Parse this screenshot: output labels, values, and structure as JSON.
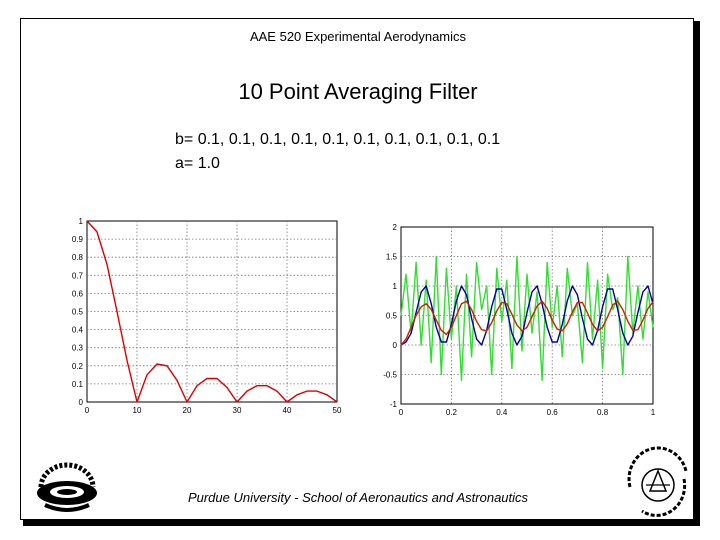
{
  "header": {
    "course": "AAE 520 Experimental Aerodynamics",
    "title": "10 Point Averaging Filter"
  },
  "coefficients": {
    "b_line": "b= 0.1,  0.1,  0.1,  0.1,  0.1,  0.1,  0.1,  0.1,  0.1,  0.1",
    "a_line": "a= 1.0"
  },
  "footer": {
    "text": "Purdue University - School of Aeronautics and Astronautics"
  },
  "logos": {
    "left": "Purdue University seal",
    "right": "Purdue University seal"
  },
  "colors": {
    "response": "#dd0000",
    "raw": "#33dd33",
    "input": "#0000aa",
    "filtered": "#cc2200"
  },
  "chart_data": [
    {
      "type": "line",
      "x_ticks": [
        "0",
        "10",
        "20",
        "30",
        "40",
        "50"
      ],
      "y_ticks": [
        "0",
        "0.1",
        "0.2",
        "0.3",
        "0.4",
        "0.5",
        "0.6",
        "0.7",
        "0.8",
        "0.9",
        "1"
      ],
      "xlim": [
        0,
        50
      ],
      "ylim": [
        0,
        1
      ],
      "grid": true,
      "series": [
        {
          "x": [
            0,
            2,
            4,
            6,
            8,
            10,
            12,
            14,
            16,
            18,
            20,
            22,
            24,
            26,
            28,
            30,
            32,
            34,
            36,
            38,
            40,
            42,
            44,
            46,
            48,
            50
          ],
          "y": [
            1.0,
            0.94,
            0.76,
            0.5,
            0.23,
            0.0,
            0.15,
            0.21,
            0.2,
            0.12,
            0.0,
            0.09,
            0.13,
            0.13,
            0.08,
            0.0,
            0.06,
            0.09,
            0.09,
            0.06,
            0.0,
            0.04,
            0.06,
            0.06,
            0.04,
            0.0
          ]
        }
      ]
    },
    {
      "type": "line",
      "x_ticks": [
        "0",
        "0.2",
        "0.4",
        "0.6",
        "0.8",
        "1"
      ],
      "y_ticks": [
        "-1",
        "-0.5",
        "0",
        "0.5",
        "1",
        "1.5",
        "2"
      ],
      "xlim": [
        0,
        1
      ],
      "ylim": [
        -1,
        2
      ],
      "grid": true,
      "series": [
        {
          "x": [
            0,
            0.02,
            0.04,
            0.06,
            0.08,
            0.1,
            0.12,
            0.14,
            0.16,
            0.18,
            0.2,
            0.22,
            0.24,
            0.26,
            0.28,
            0.3,
            0.32,
            0.34,
            0.36,
            0.38,
            0.4,
            0.42,
            0.44,
            0.46,
            0.48,
            0.5,
            0.52,
            0.54,
            0.56,
            0.58,
            0.6,
            0.62,
            0.64,
            0.66,
            0.68,
            0.7,
            0.72,
            0.74,
            0.76,
            0.78,
            0.8,
            0.82,
            0.84,
            0.86,
            0.88,
            0.9,
            0.92,
            0.94,
            0.96,
            0.98,
            1.0
          ],
          "y": [
            0.5,
            1.2,
            0.2,
            1.4,
            0.0,
            1.1,
            -0.3,
            1.5,
            -0.5,
            1.3,
            0.1,
            1.0,
            -0.6,
            1.2,
            -0.2,
            1.4,
            0.6,
            1.0,
            -0.5,
            1.3,
            0.4,
            1.1,
            -0.4,
            1.5,
            -0.1,
            1.2,
            0.2,
            0.9,
            -0.6,
            1.4,
            0.3,
            1.0,
            -0.2,
            1.3,
            0.5,
            0.7,
            -0.3,
            1.4,
            0.1,
            1.1,
            -0.4,
            1.2,
            0.6,
            0.8,
            -0.5,
            1.5,
            0.2,
            1.0,
            0.1,
            0.9,
            0.3
          ]
        },
        {
          "x": [
            0,
            0.02,
            0.04,
            0.06,
            0.08,
            0.1,
            0.12,
            0.14,
            0.16,
            0.18,
            0.2,
            0.22,
            0.24,
            0.26,
            0.28,
            0.3,
            0.32,
            0.34,
            0.36,
            0.38,
            0.4,
            0.42,
            0.44,
            0.46,
            0.48,
            0.5,
            0.52,
            0.54,
            0.56,
            0.58,
            0.6,
            0.62,
            0.64,
            0.66,
            0.68,
            0.7,
            0.72,
            0.74,
            0.76,
            0.78,
            0.8,
            0.82,
            0.84,
            0.86,
            0.88,
            0.9,
            0.92,
            0.94,
            0.96,
            0.98,
            1.0
          ],
          "y": [
            0.0,
            0.05,
            0.2,
            0.55,
            0.9,
            1.0,
            0.7,
            0.3,
            0.05,
            0.05,
            0.35,
            0.75,
            1.0,
            0.85,
            0.45,
            0.1,
            0.0,
            0.25,
            0.65,
            0.95,
            0.95,
            0.6,
            0.2,
            0.0,
            0.15,
            0.55,
            0.9,
            1.0,
            0.7,
            0.3,
            0.05,
            0.05,
            0.35,
            0.75,
            1.0,
            0.85,
            0.45,
            0.1,
            0.0,
            0.25,
            0.65,
            0.95,
            0.95,
            0.6,
            0.2,
            0.0,
            0.15,
            0.55,
            0.9,
            1.0,
            0.7
          ]
        },
        {
          "x": [
            0,
            0.02,
            0.04,
            0.06,
            0.08,
            0.1,
            0.12,
            0.14,
            0.16,
            0.18,
            0.2,
            0.22,
            0.24,
            0.26,
            0.28,
            0.3,
            0.32,
            0.34,
            0.36,
            0.38,
            0.4,
            0.42,
            0.44,
            0.46,
            0.48,
            0.5,
            0.52,
            0.54,
            0.56,
            0.58,
            0.6,
            0.62,
            0.64,
            0.66,
            0.68,
            0.7,
            0.72,
            0.74,
            0.76,
            0.78,
            0.8,
            0.82,
            0.84,
            0.86,
            0.88,
            0.9,
            0.92,
            0.94,
            0.96,
            0.98,
            1.0
          ],
          "y": [
            0.0,
            0.1,
            0.3,
            0.5,
            0.65,
            0.7,
            0.6,
            0.42,
            0.25,
            0.18,
            0.3,
            0.5,
            0.7,
            0.74,
            0.6,
            0.4,
            0.26,
            0.24,
            0.38,
            0.58,
            0.72,
            0.7,
            0.52,
            0.34,
            0.24,
            0.3,
            0.48,
            0.66,
            0.74,
            0.62,
            0.42,
            0.27,
            0.24,
            0.36,
            0.56,
            0.72,
            0.72,
            0.54,
            0.35,
            0.24,
            0.3,
            0.48,
            0.68,
            0.74,
            0.6,
            0.4,
            0.25,
            0.26,
            0.42,
            0.62,
            0.73
          ]
        }
      ]
    }
  ]
}
